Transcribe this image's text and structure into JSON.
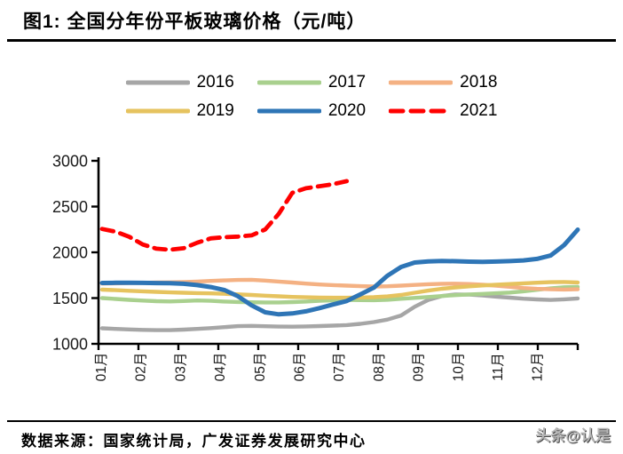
{
  "figure": {
    "title": "图1:  全国分年份平板玻璃价格（元/吨）"
  },
  "footer": {
    "source": "数据来源：国家统计局，广发证券发展研究中心",
    "watermark": "头条@认是"
  },
  "chart_data": {
    "type": "line",
    "title": "全国分年份平板玻璃价格（元/吨）",
    "xlabel": "",
    "ylabel": "元/吨",
    "ylim": [
      1000,
      3000
    ],
    "yticks": [
      1000,
      1500,
      2000,
      2500,
      3000
    ],
    "grid": false,
    "legend_position": "top",
    "categories": [
      "01月",
      "02月",
      "03月",
      "04月",
      "05月",
      "06月",
      "07月",
      "08月",
      "09月",
      "10月",
      "11月",
      "12月"
    ],
    "points_per_month": 3,
    "axis_color": "#000000",
    "tick_label_color": "#1a1a1a",
    "series": [
      {
        "name": "2016",
        "color": "#a6a6a6",
        "style": "solid",
        "values": [
          1170,
          1163,
          1157,
          1152,
          1150,
          1150,
          1155,
          1163,
          1172,
          1183,
          1193,
          1196,
          1192,
          1188,
          1187,
          1190,
          1194,
          1199,
          1205,
          1218,
          1238,
          1265,
          1310,
          1405,
          1480,
          1522,
          1540,
          1538,
          1528,
          1516,
          1505,
          1493,
          1485,
          1480,
          1486,
          1496
        ]
      },
      {
        "name": "2017",
        "color": "#a9d08e",
        "style": "solid",
        "values": [
          1500,
          1490,
          1481,
          1473,
          1466,
          1463,
          1468,
          1474,
          1470,
          1462,
          1457,
          1454,
          1452,
          1452,
          1456,
          1462,
          1470,
          1476,
          1480,
          1478,
          1477,
          1482,
          1492,
          1502,
          1512,
          1522,
          1532,
          1540,
          1546,
          1552,
          1560,
          1574,
          1590,
          1606,
          1618,
          1622
        ]
      },
      {
        "name": "2018",
        "color": "#f4b183",
        "style": "solid",
        "values": [
          1658,
          1661,
          1664,
          1667,
          1670,
          1672,
          1676,
          1681,
          1687,
          1693,
          1698,
          1700,
          1691,
          1681,
          1670,
          1658,
          1649,
          1642,
          1636,
          1630,
          1626,
          1629,
          1636,
          1644,
          1651,
          1656,
          1657,
          1653,
          1646,
          1636,
          1623,
          1610,
          1601,
          1596,
          1593,
          1596
        ]
      },
      {
        "name": "2019",
        "color": "#e6c35f",
        "style": "solid",
        "values": [
          1592,
          1586,
          1580,
          1574,
          1568,
          1562,
          1558,
          1554,
          1551,
          1547,
          1541,
          1534,
          1526,
          1519,
          1513,
          1509,
          1506,
          1504,
          1504,
          1506,
          1510,
          1518,
          1534,
          1558,
          1582,
          1602,
          1616,
          1628,
          1638,
          1646,
          1653,
          1661,
          1668,
          1674,
          1676,
          1671
        ]
      },
      {
        "name": "2020",
        "color": "#2e75b6",
        "style": "solid",
        "values": [
          1665,
          1667,
          1668,
          1666,
          1664,
          1662,
          1656,
          1642,
          1620,
          1588,
          1520,
          1420,
          1345,
          1322,
          1332,
          1355,
          1390,
          1430,
          1468,
          1540,
          1615,
          1745,
          1840,
          1888,
          1900,
          1905,
          1903,
          1898,
          1896,
          1899,
          1904,
          1912,
          1928,
          1965,
          2080,
          2248
        ]
      },
      {
        "name": "2021",
        "color": "#ff0000",
        "style": "dashed",
        "values": [
          2255,
          2225,
          2170,
          2085,
          2040,
          2028,
          2045,
          2105,
          2152,
          2165,
          2172,
          2185,
          2250,
          2420,
          2650,
          2700,
          2722,
          2745,
          2778
        ]
      }
    ]
  }
}
